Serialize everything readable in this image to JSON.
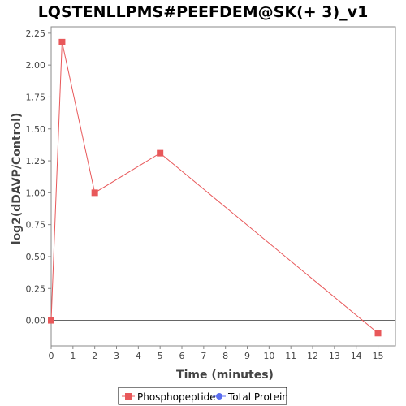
{
  "chart_data": {
    "type": "line",
    "title": "LQSTENLLPMS#PEEFDEM@SK(+ 3)_v1",
    "xlabel": "Time (minutes)",
    "ylabel": "log2(dDAVP/Control)",
    "xlim": [
      0,
      15.8
    ],
    "ylim": [
      -0.2,
      2.3
    ],
    "x_ticks": [
      0,
      1,
      2,
      3,
      4,
      5,
      6,
      7,
      8,
      9,
      10,
      11,
      12,
      13,
      14,
      15
    ],
    "x_tick_labels": [
      "0",
      "1",
      "2",
      "3",
      "4",
      "5",
      "6",
      "7",
      "8",
      "9",
      "10",
      "11",
      "12",
      "13",
      "14",
      "15"
    ],
    "y_ticks": [
      0,
      0.25,
      0.5,
      0.75,
      1.0,
      1.25,
      1.5,
      1.75,
      2.0,
      2.25
    ],
    "y_tick_labels": [
      "0.00",
      "0.25",
      "0.50",
      "0.75",
      "1.00",
      "1.25",
      "1.50",
      "1.75",
      "2.00",
      "2.25"
    ],
    "grid": false,
    "zero_line": true,
    "legend_position": "bottom",
    "series": [
      {
        "name": "Phosphopeptide",
        "color": "#e8585a",
        "marker": "square",
        "x": [
          0,
          0.5,
          2,
          5,
          15
        ],
        "y": [
          0.0,
          2.18,
          1.0,
          1.31,
          -0.1
        ]
      },
      {
        "name": "Total Protein",
        "color": "#5b6ef0",
        "marker": "circle",
        "x": [],
        "y": []
      }
    ]
  }
}
